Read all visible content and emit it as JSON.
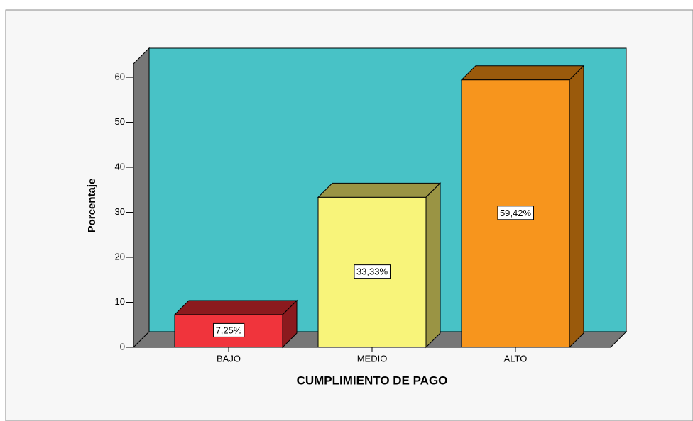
{
  "chart_data": {
    "type": "bar3d",
    "x_label": "CUMPLIMIENTO DE PAGO",
    "y_label": "Porcentaje",
    "categories": [
      "BAJO",
      "MEDIO",
      "ALTO"
    ],
    "values": [
      7.25,
      33.33,
      59.42
    ],
    "value_labels": [
      "7,25%",
      "33,33%",
      "59,42%"
    ],
    "colors": [
      "#f0343c",
      "#f8f47a",
      "#f7951d"
    ],
    "side_colors": [
      "#8b1a1e",
      "#9a9444",
      "#9a5a0c"
    ],
    "plot_color": "#48c2c6",
    "ylim": [
      0,
      63
    ],
    "yticks": [
      0,
      10,
      20,
      30,
      40,
      50,
      60
    ]
  }
}
